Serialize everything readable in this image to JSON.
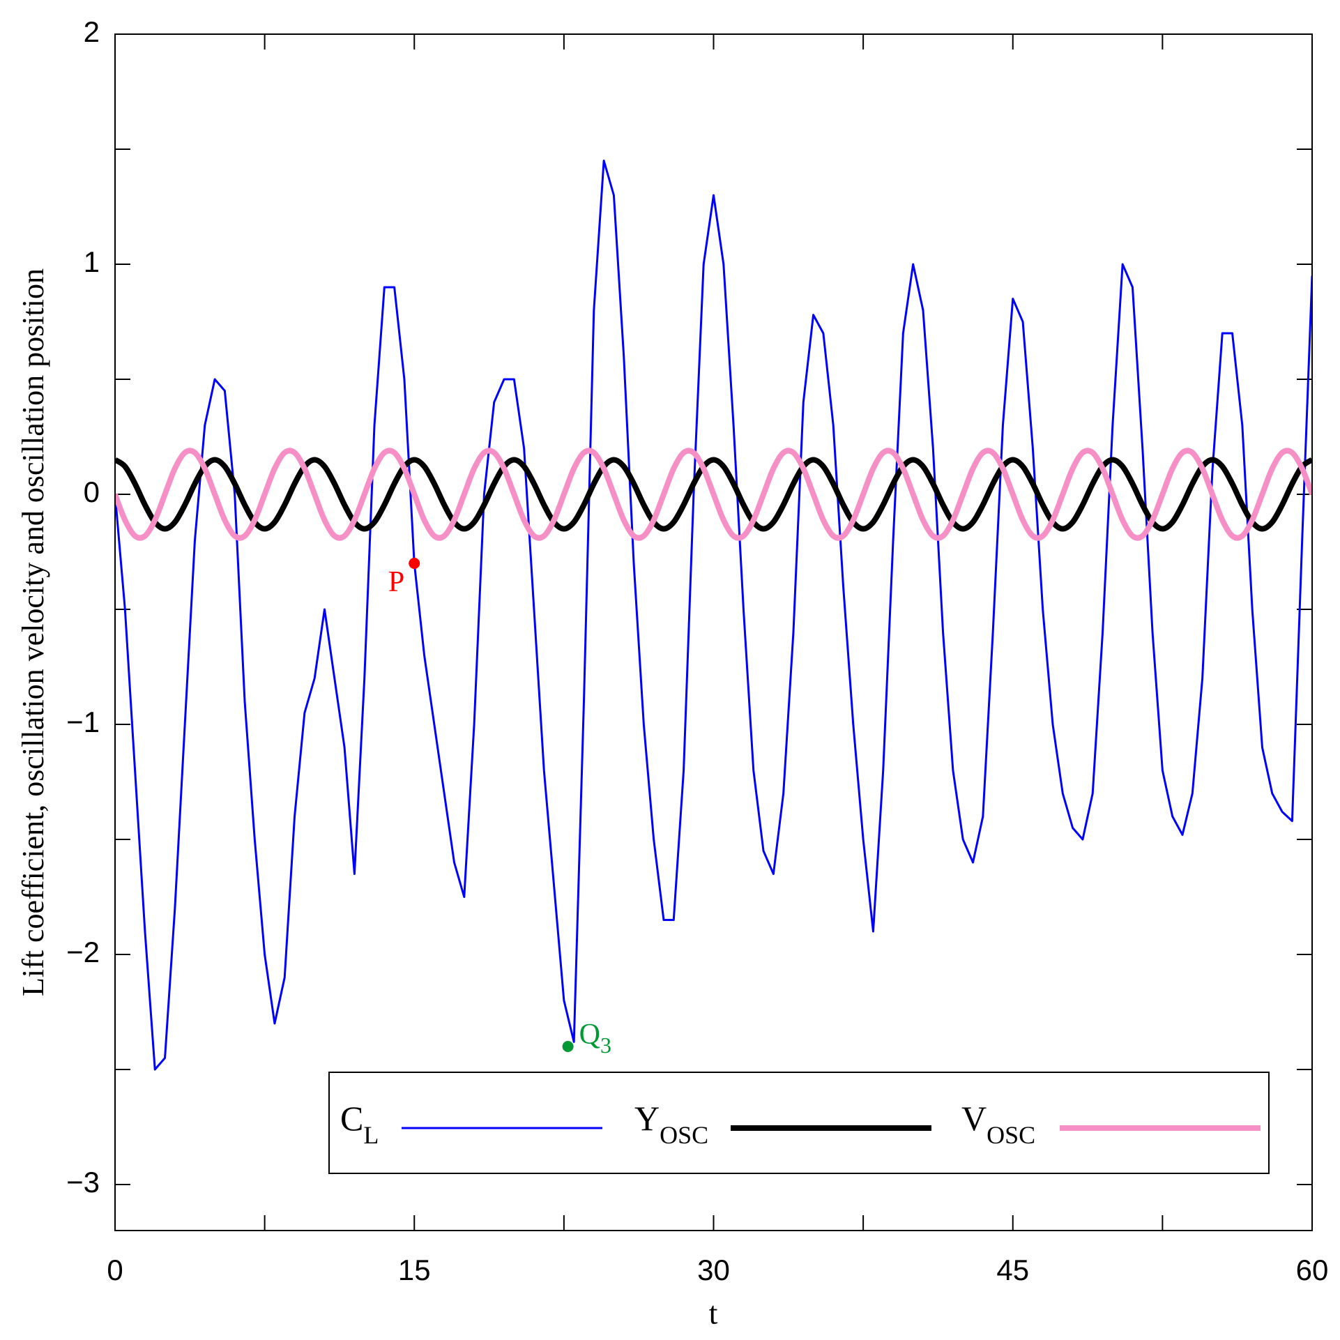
{
  "chart_data": {
    "type": "line",
    "xlabel": "t",
    "ylabel": "Lift coefficient, oscillation velocity and oscillation position",
    "xlim": [
      0,
      60
    ],
    "ylim": [
      -3.2,
      2
    ],
    "xticks": [
      0,
      15,
      30,
      45,
      60
    ],
    "xminor_ticks": [
      7.5,
      22.5,
      37.5,
      52.5
    ],
    "yticks": [
      {
        "value": -3,
        "label": "−3"
      },
      {
        "value": -2,
        "label": "−2"
      },
      {
        "value": -1,
        "label": "−1"
      },
      0,
      1,
      2
    ],
    "yminor_ticks": [
      -2.5,
      -1.5,
      -0.5,
      0.5,
      1.5
    ],
    "x": [
      0,
      0.5,
      1,
      1.5,
      2,
      2.5,
      3,
      3.5,
      4,
      4.5,
      5,
      5.5,
      6,
      6.5,
      7,
      7.5,
      8,
      8.5,
      9,
      9.5,
      10,
      10.5,
      11,
      11.5,
      12,
      12.5,
      13,
      13.5,
      14,
      14.5,
      15,
      15.5,
      16,
      16.5,
      17,
      17.5,
      18,
      18.5,
      19,
      19.5,
      20,
      20.5,
      21,
      21.5,
      22,
      22.5,
      23,
      23.5,
      24,
      24.5,
      25,
      25.5,
      26,
      26.5,
      27,
      27.5,
      28,
      28.5,
      29,
      29.5,
      30,
      30.5,
      31,
      31.5,
      32,
      32.5,
      33,
      33.5,
      34,
      34.5,
      35,
      35.5,
      36,
      36.5,
      37,
      37.5,
      38,
      38.5,
      39,
      39.5,
      40,
      40.5,
      41,
      41.5,
      42,
      42.5,
      43,
      43.5,
      44,
      44.5,
      45,
      45.5,
      46,
      46.5,
      47,
      47.5,
      48,
      48.5,
      49,
      49.5,
      50,
      50.5,
      51,
      51.5,
      52,
      52.5,
      53,
      53.5,
      54,
      54.5,
      55,
      55.5,
      56,
      56.5,
      57,
      57.5,
      58,
      58.5,
      59,
      59.5,
      60
    ],
    "series": [
      {
        "name": "C",
        "subscript": "L",
        "color": "#0000ff",
        "width": 3,
        "smooth": false,
        "values": [
          0,
          -0.5,
          -1.2,
          -1.9,
          -2.5,
          -2.45,
          -1.8,
          -1.0,
          -0.2,
          0.3,
          0.5,
          0.45,
          0.0,
          -0.9,
          -1.5,
          -2.0,
          -2.3,
          -2.1,
          -1.4,
          -0.95,
          -0.8,
          -0.5,
          -0.8,
          -1.1,
          -1.65,
          -0.8,
          0.3,
          0.9,
          0.9,
          0.5,
          -0.3,
          -0.7,
          -1.0,
          -1.3,
          -1.6,
          -1.75,
          -1.0,
          0.0,
          0.4,
          0.5,
          0.5,
          0.2,
          -0.5,
          -1.2,
          -1.7,
          -2.2,
          -2.38,
          -0.9,
          0.8,
          1.45,
          1.3,
          0.6,
          -0.3,
          -1.0,
          -1.5,
          -1.85,
          -1.85,
          -1.2,
          0.0,
          1.0,
          1.3,
          1.0,
          0.3,
          -0.5,
          -1.2,
          -1.55,
          -1.65,
          -1.3,
          -0.6,
          0.4,
          0.78,
          0.7,
          0.3,
          -0.4,
          -1.0,
          -1.5,
          -1.9,
          -1.2,
          -0.2,
          0.7,
          1.0,
          0.8,
          0.2,
          -0.6,
          -1.2,
          -1.5,
          -1.6,
          -1.4,
          -0.6,
          0.3,
          0.85,
          0.75,
          0.2,
          -0.5,
          -1.0,
          -1.3,
          -1.45,
          -1.5,
          -1.3,
          -0.6,
          0.3,
          1.0,
          0.9,
          0.2,
          -0.6,
          -1.2,
          -1.4,
          -1.48,
          -1.3,
          -0.8,
          0.1,
          0.7,
          0.7,
          0.3,
          -0.5,
          -1.1,
          -1.3,
          -1.38,
          -1.42,
          -0.2,
          0.95
        ]
      },
      {
        "name": "Y",
        "subscript": "OSC",
        "color": "#000000",
        "width": 8,
        "smooth": true,
        "values": [
          0.15,
          0.121,
          0.046,
          -0.046,
          -0.121,
          -0.15,
          -0.121,
          -0.046,
          0.046,
          0.121,
          0.15,
          0.121,
          0.046,
          -0.046,
          -0.121,
          -0.15,
          -0.121,
          -0.046,
          0.046,
          0.121,
          0.15,
          0.121,
          0.046,
          -0.046,
          -0.121,
          -0.15,
          -0.121,
          -0.046,
          0.046,
          0.121,
          0.15,
          0.121,
          0.046,
          -0.046,
          -0.121,
          -0.15,
          -0.121,
          -0.046,
          0.046,
          0.121,
          0.15,
          0.121,
          0.046,
          -0.046,
          -0.121,
          -0.15,
          -0.121,
          -0.046,
          0.046,
          0.121,
          0.15,
          0.121,
          0.046,
          -0.046,
          -0.121,
          -0.15,
          -0.121,
          -0.046,
          0.046,
          0.121,
          0.15,
          0.121,
          0.046,
          -0.046,
          -0.121,
          -0.15,
          -0.121,
          -0.046,
          0.046,
          0.121,
          0.15,
          0.121,
          0.046,
          -0.046,
          -0.121,
          -0.15,
          -0.121,
          -0.046,
          0.046,
          0.121,
          0.15,
          0.121,
          0.046,
          -0.046,
          -0.121,
          -0.15,
          -0.121,
          -0.046,
          0.046,
          0.121,
          0.15,
          0.121,
          0.046,
          -0.046,
          -0.121,
          -0.15,
          -0.121,
          -0.046,
          0.046,
          0.121,
          0.15,
          0.121,
          0.046,
          -0.046,
          -0.121,
          -0.15,
          -0.121,
          -0.046,
          0.046,
          0.121,
          0.15,
          0.121,
          0.046,
          -0.046,
          -0.121,
          -0.15,
          -0.121,
          -0.046,
          0.046,
          0.121,
          0.15
        ]
      },
      {
        "name": "V",
        "subscript": "OSC",
        "color": "#f78fc7",
        "width": 8,
        "smooth": true,
        "values": [
          0,
          -0.112,
          -0.181,
          -0.181,
          -0.112,
          0,
          0.112,
          0.181,
          0.181,
          0.112,
          0,
          -0.112,
          -0.181,
          -0.181,
          -0.112,
          0,
          0.112,
          0.181,
          0.181,
          0.112,
          0,
          -0.112,
          -0.181,
          -0.181,
          -0.112,
          0,
          0.112,
          0.181,
          0.181,
          0.112,
          0,
          -0.112,
          -0.181,
          -0.181,
          -0.112,
          0,
          0.112,
          0.181,
          0.181,
          0.112,
          0,
          -0.112,
          -0.181,
          -0.181,
          -0.112,
          0,
          0.112,
          0.181,
          0.181,
          0.112,
          0,
          -0.112,
          -0.181,
          -0.181,
          -0.112,
          0,
          0.112,
          0.181,
          0.181,
          0.112,
          0,
          -0.112,
          -0.181,
          -0.181,
          -0.112,
          0,
          0.112,
          0.181,
          0.181,
          0.112,
          0,
          -0.112,
          -0.181,
          -0.181,
          -0.112,
          0,
          0.112,
          0.181,
          0.181,
          0.112,
          0,
          -0.112,
          -0.181,
          -0.181,
          -0.112,
          0,
          0.112,
          0.181,
          0.181,
          0.112,
          0,
          -0.112,
          -0.181,
          -0.181,
          -0.112,
          0,
          0.112,
          0.181,
          0.181,
          0.112,
          0,
          -0.112,
          -0.181,
          -0.181,
          -0.112,
          0,
          0.112,
          0.181,
          0.181,
          0.112,
          0,
          -0.112,
          -0.181,
          -0.181,
          -0.112,
          0,
          0.112,
          0.181,
          0.181,
          0.112,
          0
        ]
      }
    ],
    "annotations": [
      {
        "text": "P",
        "x": 15,
        "y": -0.3,
        "color": "#ff0000"
      },
      {
        "text": "Q",
        "subscript": "3",
        "x": 22.7,
        "y": -2.4,
        "color": "#009933"
      }
    ]
  }
}
